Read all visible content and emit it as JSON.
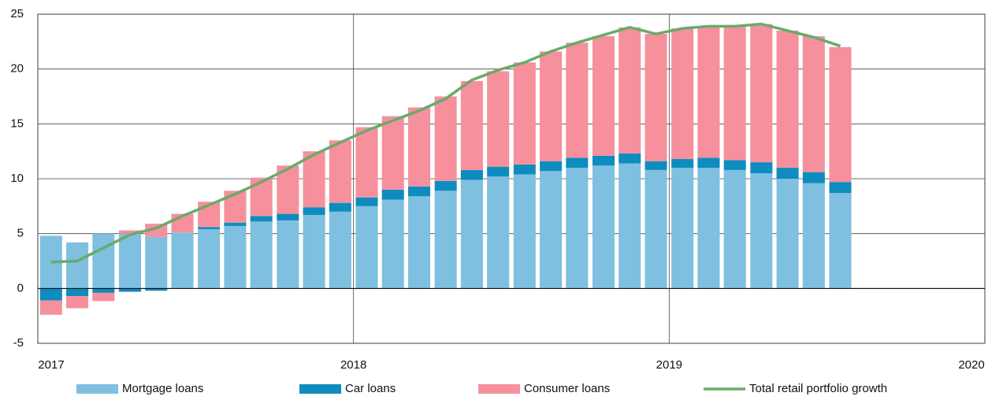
{
  "chart_data": {
    "type": "stacked-bar-line",
    "x": [
      2017.042,
      2017.125,
      2017.208,
      2017.292,
      2017.375,
      2017.458,
      2017.542,
      2017.625,
      2017.708,
      2017.792,
      2017.875,
      2017.958,
      2018.042,
      2018.125,
      2018.208,
      2018.292,
      2018.375,
      2018.458,
      2018.542,
      2018.625,
      2018.708,
      2018.792,
      2018.875,
      2018.958,
      2019.042,
      2019.125,
      2019.208,
      2019.292,
      2019.375,
      2019.458,
      2019.542
    ],
    "series": [
      {
        "name": "Mortgage loans",
        "color": "#7fbfdf",
        "kind": "bar",
        "values": [
          4.8,
          4.2,
          5.0,
          5.0,
          4.7,
          5.1,
          5.4,
          5.7,
          6.1,
          6.2,
          6.7,
          7.0,
          7.5,
          8.1,
          8.4,
          8.9,
          9.9,
          10.2,
          10.4,
          10.7,
          11.0,
          11.2,
          11.4,
          10.8,
          11.0,
          11.0,
          10.8,
          10.5,
          10.0,
          9.6,
          8.7
        ]
      },
      {
        "name": "Car loans",
        "color": "#0e8cbf",
        "kind": "bar",
        "values": [
          -1.1,
          -0.7,
          -0.4,
          -0.3,
          -0.2,
          0.0,
          0.2,
          0.3,
          0.5,
          0.6,
          0.7,
          0.8,
          0.8,
          0.9,
          0.9,
          0.9,
          0.9,
          0.9,
          0.9,
          0.9,
          0.9,
          0.9,
          0.9,
          0.8,
          0.8,
          0.9,
          0.9,
          1.0,
          1.0,
          1.0,
          1.0
        ]
      },
      {
        "name": "Consumer loans",
        "color": "#f5909c",
        "kind": "bar",
        "values": [
          -1.3,
          -1.1,
          -0.75,
          0.3,
          1.2,
          1.7,
          2.3,
          2.9,
          3.5,
          4.4,
          5.1,
          5.7,
          6.4,
          6.7,
          7.2,
          7.7,
          8.1,
          8.7,
          9.3,
          10.0,
          10.5,
          10.9,
          11.5,
          11.6,
          11.9,
          12.0,
          12.3,
          12.6,
          12.5,
          12.4,
          12.3
        ]
      },
      {
        "name": "Total retail portfolio growth",
        "color": "#6aaa6a",
        "kind": "line",
        "values": [
          2.4,
          2.5,
          3.7,
          4.9,
          5.5,
          6.6,
          7.6,
          8.6,
          9.7,
          10.9,
          12.2,
          13.3,
          14.4,
          15.3,
          16.2,
          17.3,
          19.0,
          19.9,
          20.6,
          21.6,
          22.4,
          23.1,
          23.8,
          23.2,
          23.7,
          23.9,
          23.9,
          24.1,
          23.5,
          22.9,
          22.1
        ]
      }
    ],
    "xlim": [
      2017,
      2020
    ],
    "xticks": [
      2017,
      2018,
      2019,
      2020
    ],
    "ylim": [
      -5,
      25
    ],
    "yticks": [
      -5,
      0,
      5,
      10,
      15,
      20,
      25
    ],
    "grid": true,
    "legend": "bottom"
  }
}
